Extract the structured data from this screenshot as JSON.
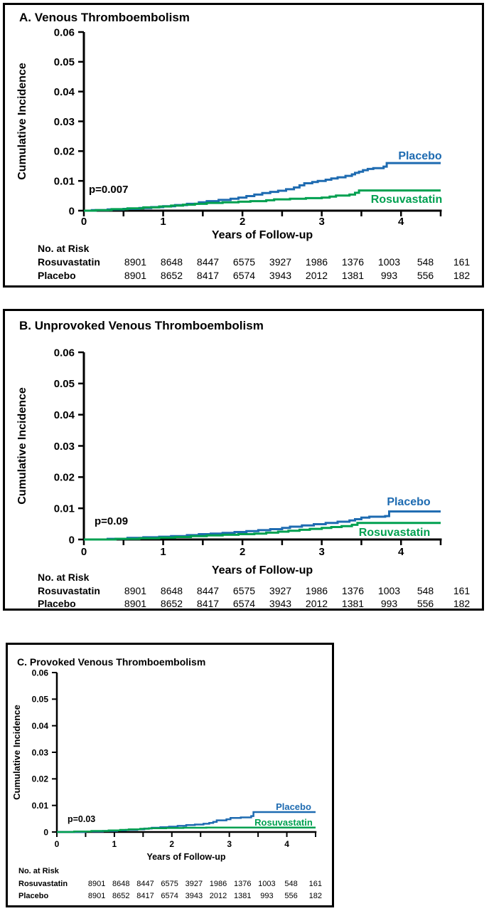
{
  "figure": {
    "background": "#ffffff",
    "border_color": "#000000",
    "placebo_color": "#1E6BB1",
    "rosuvastatin_color": "#00A050",
    "text_color": "#000000"
  },
  "chart_data": [
    {
      "type": "line",
      "subtype": "kaplan-meier-cumulative-incidence",
      "title": "A. Venous Thromboembolism",
      "xlabel": "Years of Follow-up",
      "ylabel": "Cumulative Incidence",
      "xlim": [
        0,
        4.5
      ],
      "ylim": [
        0,
        0.06
      ],
      "xticks": [
        0,
        0.5,
        1,
        1.5,
        2,
        2.5,
        3,
        3.5,
        4,
        4.5
      ],
      "xtick_labels": [
        "0",
        "",
        "1",
        "",
        "2",
        "",
        "3",
        "",
        "4",
        ""
      ],
      "yticks": [
        0,
        0.01,
        0.02,
        0.03,
        0.04,
        0.05,
        0.06
      ],
      "ytick_labels": [
        "0",
        "0.01",
        "0.02",
        "0.03",
        "0.04",
        "0.05",
        "0.06"
      ],
      "grid": false,
      "p_value": "p=0.007",
      "series": [
        {
          "name": "Placebo",
          "color": "#1E6BB1",
          "points": [
            [
              0.1,
              0.0002
            ],
            [
              0.3,
              0.0004
            ],
            [
              0.5,
              0.0006
            ],
            [
              0.7,
              0.0009
            ],
            [
              0.85,
              0.0012
            ],
            [
              1.0,
              0.0015
            ],
            [
              1.15,
              0.0019
            ],
            [
              1.3,
              0.0023
            ],
            [
              1.45,
              0.0028
            ],
            [
              1.55,
              0.0032
            ],
            [
              1.7,
              0.0036
            ],
            [
              1.85,
              0.004
            ],
            [
              1.95,
              0.0044
            ],
            [
              2.05,
              0.0049
            ],
            [
              2.15,
              0.0054
            ],
            [
              2.25,
              0.0059
            ],
            [
              2.35,
              0.0063
            ],
            [
              2.45,
              0.0067
            ],
            [
              2.55,
              0.0072
            ],
            [
              2.65,
              0.0078
            ],
            [
              2.72,
              0.0085
            ],
            [
              2.78,
              0.0092
            ],
            [
              2.88,
              0.0096
            ],
            [
              2.95,
              0.01
            ],
            [
              3.05,
              0.0104
            ],
            [
              3.12,
              0.0108
            ],
            [
              3.2,
              0.0112
            ],
            [
              3.3,
              0.0117
            ],
            [
              3.38,
              0.0122
            ],
            [
              3.42,
              0.0127
            ],
            [
              3.47,
              0.0131
            ],
            [
              3.52,
              0.0136
            ],
            [
              3.58,
              0.014
            ],
            [
              3.65,
              0.0143
            ],
            [
              3.78,
              0.0148
            ],
            [
              3.82,
              0.016
            ]
          ]
        },
        {
          "name": "Rosuvastatin",
          "color": "#00A050",
          "points": [
            [
              0.15,
              0.0002
            ],
            [
              0.35,
              0.0005
            ],
            [
              0.55,
              0.0008
            ],
            [
              0.75,
              0.0011
            ],
            [
              0.95,
              0.0014
            ],
            [
              1.1,
              0.0017
            ],
            [
              1.25,
              0.002
            ],
            [
              1.4,
              0.0023
            ],
            [
              1.55,
              0.0026
            ],
            [
              1.75,
              0.0028
            ],
            [
              1.95,
              0.003
            ],
            [
              2.1,
              0.0032
            ],
            [
              2.3,
              0.0035
            ],
            [
              2.4,
              0.0038
            ],
            [
              2.6,
              0.004
            ],
            [
              2.8,
              0.0042
            ],
            [
              3.0,
              0.0044
            ],
            [
              3.1,
              0.0047
            ],
            [
              3.18,
              0.0051
            ],
            [
              3.35,
              0.0054
            ],
            [
              3.42,
              0.006
            ],
            [
              3.47,
              0.0068
            ]
          ]
        }
      ],
      "no_at_risk": {
        "header": "No. at Risk",
        "times": [
          0,
          0.5,
          1,
          1.5,
          2,
          2.5,
          3,
          3.5,
          4,
          4.5
        ],
        "rows": [
          {
            "label": "Rosuvastatin",
            "values": [
              "8901",
              "8648",
              "8447",
              "6575",
              "3927",
              "1986",
              "1376",
              "1003",
              "548",
              "161"
            ]
          },
          {
            "label": "Placebo",
            "values": [
              "8901",
              "8652",
              "8417",
              "6574",
              "3943",
              "2012",
              "1381",
              "993",
              "556",
              "182"
            ]
          }
        ]
      }
    },
    {
      "type": "line",
      "subtype": "kaplan-meier-cumulative-incidence",
      "title": "B. Unprovoked Venous Thromboembolism",
      "xlabel": "Years of Follow-up",
      "ylabel": "Cumulative Incidence",
      "xlim": [
        0,
        4.5
      ],
      "ylim": [
        0,
        0.06
      ],
      "xticks": [
        0,
        0.5,
        1,
        1.5,
        2,
        2.5,
        3,
        3.5,
        4,
        4.5
      ],
      "xtick_labels": [
        "0",
        "",
        "1",
        "",
        "2",
        "",
        "3",
        "",
        "4",
        ""
      ],
      "yticks": [
        0,
        0.01,
        0.02,
        0.03,
        0.04,
        0.05,
        0.06
      ],
      "ytick_labels": [
        "0",
        "0.01",
        "0.02",
        "0.03",
        "0.04",
        "0.05",
        "0.06"
      ],
      "grid": false,
      "p_value": "p=0.09",
      "series": [
        {
          "name": "Placebo",
          "color": "#1E6BB1",
          "points": [
            [
              0.3,
              0.0002
            ],
            [
              0.55,
              0.0005
            ],
            [
              0.75,
              0.0007
            ],
            [
              0.95,
              0.0009
            ],
            [
              1.1,
              0.0011
            ],
            [
              1.3,
              0.0014
            ],
            [
              1.45,
              0.0017
            ],
            [
              1.6,
              0.0019
            ],
            [
              1.75,
              0.0021
            ],
            [
              1.9,
              0.0024
            ],
            [
              2.05,
              0.0027
            ],
            [
              2.2,
              0.003
            ],
            [
              2.35,
              0.0033
            ],
            [
              2.5,
              0.0037
            ],
            [
              2.6,
              0.0041
            ],
            [
              2.75,
              0.0045
            ],
            [
              2.9,
              0.0049
            ],
            [
              3.05,
              0.0053
            ],
            [
              3.2,
              0.0057
            ],
            [
              3.35,
              0.0061
            ],
            [
              3.42,
              0.0065
            ],
            [
              3.5,
              0.007
            ],
            [
              3.6,
              0.0073
            ],
            [
              3.8,
              0.0075
            ],
            [
              3.85,
              0.009
            ]
          ]
        },
        {
          "name": "Rosuvastatin",
          "color": "#00A050",
          "points": [
            [
              0.4,
              0.0002
            ],
            [
              0.7,
              0.0004
            ],
            [
              0.95,
              0.0006
            ],
            [
              1.15,
              0.0008
            ],
            [
              1.35,
              0.0011
            ],
            [
              1.55,
              0.0013
            ],
            [
              1.75,
              0.0015
            ],
            [
              1.95,
              0.0017
            ],
            [
              2.15,
              0.0019
            ],
            [
              2.3,
              0.0022
            ],
            [
              2.45,
              0.0025
            ],
            [
              2.58,
              0.0028
            ],
            [
              2.72,
              0.0031
            ],
            [
              2.85,
              0.0034
            ],
            [
              3.0,
              0.0037
            ],
            [
              3.12,
              0.004
            ],
            [
              3.25,
              0.0043
            ],
            [
              3.38,
              0.0047
            ],
            [
              3.45,
              0.0053
            ]
          ]
        }
      ],
      "no_at_risk": {
        "header": "No. at Risk",
        "times": [
          0,
          0.5,
          1,
          1.5,
          2,
          2.5,
          3,
          3.5,
          4,
          4.5
        ],
        "rows": [
          {
            "label": "Rosuvastatin",
            "values": [
              "8901",
              "8648",
              "8447",
              "6575",
              "3927",
              "1986",
              "1376",
              "1003",
              "548",
              "161"
            ]
          },
          {
            "label": "Placebo",
            "values": [
              "8901",
              "8652",
              "8417",
              "6574",
              "3943",
              "2012",
              "1381",
              "993",
              "556",
              "182"
            ]
          }
        ]
      }
    },
    {
      "type": "line",
      "subtype": "kaplan-meier-cumulative-incidence",
      "title": "C. Provoked Venous Thromboembolism",
      "xlabel": "Years of Follow-up",
      "ylabel": "Cumulative Incidence",
      "xlim": [
        0,
        4.5
      ],
      "ylim": [
        0,
        0.06
      ],
      "xticks": [
        0,
        0.5,
        1,
        1.5,
        2,
        2.5,
        3,
        3.5,
        4,
        4.5
      ],
      "xtick_labels": [
        "0",
        "",
        "1",
        "",
        "2",
        "",
        "3",
        "",
        "4",
        ""
      ],
      "yticks": [
        0,
        0.01,
        0.02,
        0.03,
        0.04,
        0.05,
        0.06
      ],
      "ytick_labels": [
        "0",
        "0.01",
        "0.02",
        "0.03",
        "0.04",
        "0.05",
        "0.06"
      ],
      "grid": false,
      "p_value": "p=0.03",
      "series": [
        {
          "name": "Placebo",
          "color": "#1E6BB1",
          "points": [
            [
              0.5,
              0.0002
            ],
            [
              0.8,
              0.0004
            ],
            [
              1.05,
              0.0006
            ],
            [
              1.2,
              0.0008
            ],
            [
              1.4,
              0.001
            ],
            [
              1.52,
              0.0013
            ],
            [
              1.65,
              0.0016
            ],
            [
              1.8,
              0.0018
            ],
            [
              1.95,
              0.002
            ],
            [
              2.1,
              0.0023
            ],
            [
              2.25,
              0.0026
            ],
            [
              2.4,
              0.0028
            ],
            [
              2.55,
              0.0031
            ],
            [
              2.65,
              0.0034
            ],
            [
              2.72,
              0.0038
            ],
            [
              2.78,
              0.0044
            ],
            [
              2.95,
              0.0048
            ],
            [
              3.02,
              0.0053
            ],
            [
              3.2,
              0.0055
            ],
            [
              3.38,
              0.006
            ],
            [
              3.42,
              0.0075
            ]
          ]
        },
        {
          "name": "Rosuvastatin",
          "color": "#00A050",
          "points": [
            [
              0.3,
              0.0002
            ],
            [
              0.6,
              0.0004
            ],
            [
              0.9,
              0.0006
            ],
            [
              1.1,
              0.0008
            ],
            [
              1.25,
              0.001
            ],
            [
              1.45,
              0.0012
            ],
            [
              1.6,
              0.0014
            ],
            [
              1.9,
              0.0015
            ],
            [
              2.2,
              0.0016
            ],
            [
              2.6,
              0.0017
            ]
          ]
        }
      ],
      "no_at_risk": {
        "header": "No. at Risk",
        "times": [
          0,
          0.5,
          1,
          1.5,
          2,
          2.5,
          3,
          3.5,
          4,
          4.5
        ],
        "rows": [
          {
            "label": "Rosuvastatin",
            "values": [
              "8901",
              "8648",
              "8447",
              "6575",
              "3927",
              "1986",
              "1376",
              "1003",
              "548",
              "161"
            ]
          },
          {
            "label": "Placebo",
            "values": [
              "8901",
              "8652",
              "8417",
              "6574",
              "3943",
              "2012",
              "1381",
              "993",
              "556",
              "182"
            ]
          }
        ]
      }
    }
  ]
}
